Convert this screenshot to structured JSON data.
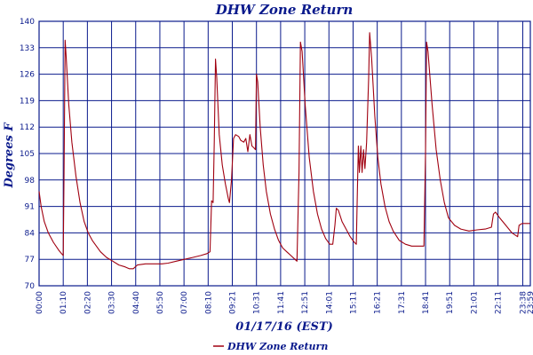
{
  "chart_data": {
    "type": "line",
    "title": "DHW Zone Return",
    "xlabel": "01/17/16 (EST)",
    "ylabel": "Degrees F",
    "ylim": [
      70,
      140
    ],
    "yticks": [
      70,
      77,
      84,
      91,
      98,
      105,
      112,
      119,
      126,
      133,
      140
    ],
    "xticks": [
      "00:00",
      "01:10",
      "02:20",
      "03:30",
      "04:40",
      "05:50",
      "07:00",
      "08:10",
      "09:21",
      "10:31",
      "11:41",
      "12:51",
      "14:01",
      "15:11",
      "16:21",
      "17:31",
      "18:41",
      "19:51",
      "21:01",
      "22:11",
      "23:38",
      "23:59"
    ],
    "grid": true,
    "legend": "bottom-center",
    "colors": {
      "series": "#a00010",
      "grid": "#0a1a8c",
      "text": "#0a1a8c"
    },
    "series": [
      {
        "name": "DHW Zone Return",
        "points": [
          [
            0.0,
            95
          ],
          [
            0.1,
            91
          ],
          [
            0.25,
            87
          ],
          [
            0.45,
            84
          ],
          [
            0.7,
            81.5
          ],
          [
            0.95,
            79.5
          ],
          [
            1.1,
            78.5
          ],
          [
            1.18,
            78
          ],
          [
            1.22,
            100
          ],
          [
            1.27,
            135
          ],
          [
            1.32,
            131
          ],
          [
            1.45,
            118
          ],
          [
            1.6,
            108
          ],
          [
            1.8,
            99
          ],
          [
            2.0,
            92
          ],
          [
            2.2,
            87
          ],
          [
            2.4,
            84
          ],
          [
            2.6,
            82
          ],
          [
            2.8,
            80.5
          ],
          [
            3.0,
            79
          ],
          [
            3.3,
            77.5
          ],
          [
            3.6,
            76.5
          ],
          [
            3.9,
            75.5
          ],
          [
            4.2,
            75
          ],
          [
            4.4,
            74.5
          ],
          [
            4.6,
            74.5
          ],
          [
            4.8,
            75.5
          ],
          [
            5.2,
            75.8
          ],
          [
            5.6,
            75.8
          ],
          [
            6.0,
            75.8
          ],
          [
            6.3,
            76
          ],
          [
            6.7,
            76.5
          ],
          [
            7.1,
            77
          ],
          [
            7.5,
            77.5
          ],
          [
            7.9,
            78
          ],
          [
            8.2,
            78.5
          ],
          [
            8.35,
            79
          ],
          [
            8.4,
            88
          ],
          [
            8.43,
            92.5
          ],
          [
            8.5,
            92
          ],
          [
            8.56,
            108
          ],
          [
            8.62,
            130
          ],
          [
            8.68,
            125
          ],
          [
            8.8,
            110
          ],
          [
            8.95,
            102
          ],
          [
            9.1,
            97
          ],
          [
            9.25,
            93
          ],
          [
            9.3,
            92
          ],
          [
            9.4,
            98
          ],
          [
            9.5,
            109
          ],
          [
            9.6,
            110
          ],
          [
            9.75,
            109.5
          ],
          [
            9.85,
            108.5
          ],
          [
            10.0,
            108
          ],
          [
            10.1,
            109
          ],
          [
            10.2,
            105.5
          ],
          [
            10.3,
            110
          ],
          [
            10.4,
            107
          ],
          [
            10.5,
            106.5
          ],
          [
            10.57,
            106
          ],
          [
            10.62,
            126
          ],
          [
            10.68,
            124
          ],
          [
            10.8,
            112
          ],
          [
            10.95,
            102
          ],
          [
            11.1,
            95
          ],
          [
            11.3,
            89
          ],
          [
            11.5,
            85
          ],
          [
            11.7,
            82
          ],
          [
            11.9,
            80
          ],
          [
            12.1,
            79
          ],
          [
            12.3,
            78
          ],
          [
            12.5,
            77
          ],
          [
            12.6,
            76.5
          ],
          [
            12.7,
            100
          ],
          [
            12.77,
            134.5
          ],
          [
            12.85,
            132
          ],
          [
            13.0,
            118
          ],
          [
            13.2,
            104
          ],
          [
            13.4,
            95
          ],
          [
            13.6,
            89
          ],
          [
            13.8,
            85
          ],
          [
            14.0,
            82.5
          ],
          [
            14.2,
            81
          ],
          [
            14.35,
            81
          ],
          [
            14.45,
            86
          ],
          [
            14.52,
            90.5
          ],
          [
            14.62,
            90
          ],
          [
            14.8,
            87
          ],
          [
            15.0,
            85
          ],
          [
            15.2,
            83
          ],
          [
            15.4,
            81.5
          ],
          [
            15.5,
            81
          ],
          [
            15.55,
            95
          ],
          [
            15.6,
            107
          ],
          [
            15.65,
            100
          ],
          [
            15.72,
            107
          ],
          [
            15.78,
            100
          ],
          [
            15.85,
            106
          ],
          [
            15.92,
            101
          ],
          [
            16.0,
            108
          ],
          [
            16.1,
            125
          ],
          [
            16.15,
            137
          ],
          [
            16.25,
            130
          ],
          [
            16.4,
            115
          ],
          [
            16.55,
            104
          ],
          [
            16.7,
            97
          ],
          [
            16.9,
            91
          ],
          [
            17.1,
            87
          ],
          [
            17.3,
            84.5
          ],
          [
            17.6,
            82
          ],
          [
            17.9,
            81
          ],
          [
            18.2,
            80.5
          ],
          [
            18.5,
            80.5
          ],
          [
            18.8,
            80.5
          ],
          [
            18.88,
            105
          ],
          [
            18.93,
            134.5
          ],
          [
            19.0,
            132
          ],
          [
            19.2,
            118
          ],
          [
            19.4,
            106
          ],
          [
            19.6,
            98
          ],
          [
            19.8,
            92
          ],
          [
            20.0,
            88
          ],
          [
            20.3,
            86
          ],
          [
            20.6,
            85
          ],
          [
            21.0,
            84.5
          ],
          [
            21.4,
            84.8
          ],
          [
            21.8,
            85
          ],
          [
            22.1,
            85.5
          ],
          [
            22.2,
            89
          ],
          [
            22.3,
            89.5
          ],
          [
            22.5,
            88
          ],
          [
            22.8,
            86
          ],
          [
            23.1,
            84
          ],
          [
            23.38,
            83
          ],
          [
            23.45,
            86
          ],
          [
            23.6,
            86.5
          ],
          [
            23.98,
            86.5
          ]
        ]
      }
    ]
  }
}
